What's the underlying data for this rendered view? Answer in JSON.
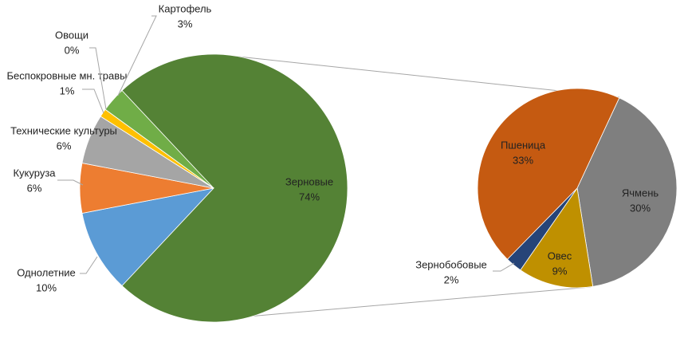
{
  "chart_data": [
    {
      "type": "pie",
      "categories": [
        "Зерновые",
        "Однолетние",
        "Кукуруза",
        "Технические культуры",
        "Беспокровные мн. травы",
        "Овощи",
        "Картофель"
      ],
      "values": [
        74,
        10,
        6,
        6,
        1,
        0,
        3
      ],
      "value_labels": [
        "74%",
        "10%",
        "6%",
        "6%",
        "1%",
        "0%",
        "3%"
      ],
      "colors": [
        "#548235",
        "#5b9bd5",
        "#ed7d31",
        "#a5a5a5",
        "#ffc000",
        "#4472c4",
        "#70ad47"
      ]
    },
    {
      "type": "pie",
      "categories": [
        "Ячмень",
        "Овес",
        "Зернобобовые",
        "Пшеница"
      ],
      "values": [
        30,
        9,
        2,
        33
      ],
      "value_labels": [
        "30%",
        "9%",
        "2%",
        "33%"
      ],
      "colors": [
        "#7f7f7f",
        "#bf9000",
        "#264478",
        "#c55a11"
      ]
    }
  ]
}
